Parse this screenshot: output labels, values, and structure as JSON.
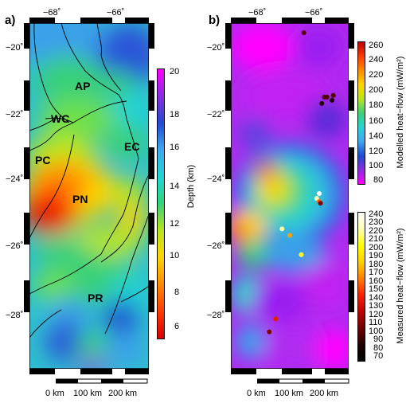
{
  "panels": [
    {
      "letter": "a)"
    },
    {
      "letter": "b)"
    }
  ],
  "axes": {
    "lon_ticks": [
      {
        "label": "−68˚"
      },
      {
        "label": "−66˚"
      }
    ],
    "lat_ticks": [
      {
        "label": "−20˚"
      },
      {
        "label": "−22˚"
      },
      {
        "label": "−24˚"
      },
      {
        "label": "−26˚"
      },
      {
        "label": "−28˚"
      }
    ]
  },
  "regions": [
    {
      "code": "AP"
    },
    {
      "code": "WC"
    },
    {
      "code": "EC"
    },
    {
      "code": "PC"
    },
    {
      "code": "PN"
    },
    {
      "code": "PR"
    }
  ],
  "colorbars": {
    "depth": {
      "label": "Depth (km)",
      "ticks": [
        "20",
        "18",
        "16",
        "14",
        "12",
        "10",
        "8",
        "6"
      ],
      "colors": [
        "#ff00ff",
        "#8a2be2",
        "#1e4bd2",
        "#3fa8f0",
        "#22d3d3",
        "#37d07a",
        "#b9e51b",
        "#ffd400",
        "#ff8a00",
        "#ff3a00",
        "#d40000"
      ]
    },
    "modelled": {
      "label": "Modelled heat−flow (mW/m²)",
      "ticks": [
        "260",
        "240",
        "220",
        "200",
        "180",
        "160",
        "140",
        "120",
        "100",
        "80"
      ],
      "colors": [
        "#c00000",
        "#ff3a00",
        "#ff8a00",
        "#ffd400",
        "#b9e51b",
        "#37d07a",
        "#22d3d3",
        "#3fa8f0",
        "#1e4bd2",
        "#8a2be2",
        "#ff00ff"
      ]
    },
    "measured": {
      "label": "Measured heat−flow (mW/m²)",
      "ticks": [
        "240",
        "230",
        "220",
        "210",
        "200",
        "190",
        "180",
        "170",
        "160",
        "150",
        "140",
        "130",
        "120",
        "110",
        "100",
        "90",
        "80",
        "70"
      ],
      "colors": [
        "#ffffff",
        "#ffffb0",
        "#ffff00",
        "#ffd000",
        "#ff8000",
        "#ff2000",
        "#c00000",
        "#700000",
        "#200000",
        "#000000"
      ]
    }
  },
  "scale_bars": [
    {
      "labels": [
        "0 km",
        "100 km",
        "200 km"
      ]
    },
    {
      "labels": [
        "0 km",
        "100 km",
        "200 km"
      ]
    }
  ],
  "measured_points": [
    {
      "lon": -66.6,
      "lat": -19.1,
      "heat_flow": 90
    },
    {
      "lon": -65.8,
      "lat": -21.1,
      "heat_flow": 80
    },
    {
      "lon": -65.7,
      "lat": -21.1,
      "heat_flow": 80
    },
    {
      "lon": -65.9,
      "lat": -21.3,
      "heat_flow": 75
    },
    {
      "lon": -65.5,
      "lat": -21.2,
      "heat_flow": 72
    },
    {
      "lon": -65.45,
      "lat": -21.05,
      "heat_flow": 80
    },
    {
      "lon": -66.0,
      "lat": -24.1,
      "heat_flow": 240
    },
    {
      "lon": -66.1,
      "lat": -24.25,
      "heat_flow": 230
    },
    {
      "lon": -66.0,
      "lat": -24.35,
      "heat_flow": 150
    },
    {
      "lon": -65.95,
      "lat": -24.4,
      "heat_flow": 110
    },
    {
      "lon": -67.45,
      "lat": -25.2,
      "heat_flow": 225
    },
    {
      "lon": -67.15,
      "lat": -25.4,
      "heat_flow": 170
    },
    {
      "lon": -66.7,
      "lat": -26.0,
      "heat_flow": 205
    },
    {
      "lon": -67.7,
      "lat": -28.0,
      "heat_flow": 130
    },
    {
      "lon": -67.95,
      "lat": -28.4,
      "heat_flow": 110
    }
  ]
}
